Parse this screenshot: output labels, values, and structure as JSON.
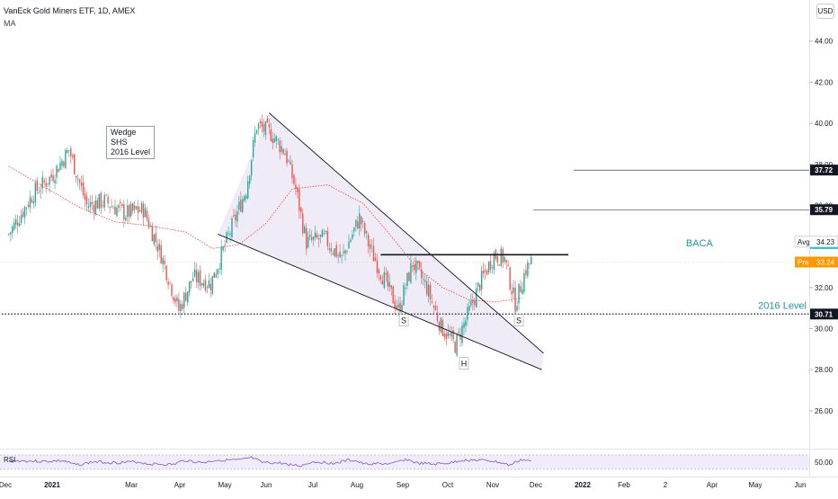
{
  "header": {
    "title": "VanEck Gold Miners ETF, 1D, AMEX",
    "indicator": "MA"
  },
  "currency_button": "USD",
  "note": {
    "lines": [
      "Wedge",
      "SHS",
      "2016 Level"
    ]
  },
  "colors": {
    "up": "#26a69a",
    "down": "#ef5350",
    "ma": "#ef5350",
    "wedge_fill": "#ede9f6",
    "rsi": "#7e57c2",
    "rsi_band": "#f1ecfb",
    "accent": "#2196a3",
    "pre_market": "#ff9800"
  },
  "chart_data": {
    "type": "candlestick",
    "y_ticks": [
      "44.00",
      "42.00",
      "40.00",
      "38.00",
      "36.00",
      "34.00",
      "32.00",
      "30.00",
      "28.00",
      "26.00"
    ],
    "ylim": [
      24.2,
      46.0
    ],
    "x_ticks": [
      "Dec",
      "2021",
      "Mar",
      "Apr",
      "May",
      "Jun",
      "Jul",
      "Aug",
      "Sep",
      "Oct",
      "Nov",
      "Dec",
      "2022",
      "Feb",
      "2",
      "Apr",
      "May",
      "Jun"
    ],
    "anchors": [
      {
        "t": 0,
        "p": 34.6
      },
      {
        "t": 14,
        "p": 36.6
      },
      {
        "t": 24,
        "p": 37.4
      },
      {
        "t": 34,
        "p": 38.7
      },
      {
        "t": 44,
        "p": 36.0
      },
      {
        "t": 54,
        "p": 36.2
      },
      {
        "t": 66,
        "p": 35.6
      },
      {
        "t": 76,
        "p": 35.8
      },
      {
        "t": 86,
        "p": 33.6
      },
      {
        "t": 96,
        "p": 30.9
      },
      {
        "t": 104,
        "p": 32.5
      },
      {
        "t": 114,
        "p": 32.2
      },
      {
        "t": 124,
        "p": 34.5
      },
      {
        "t": 134,
        "p": 36.8
      },
      {
        "t": 140,
        "p": 39.9
      },
      {
        "t": 148,
        "p": 39.5
      },
      {
        "t": 156,
        "p": 38.6
      },
      {
        "t": 162,
        "p": 36.8
      },
      {
        "t": 168,
        "p": 34.2
      },
      {
        "t": 178,
        "p": 34.4
      },
      {
        "t": 188,
        "p": 33.4
      },
      {
        "t": 198,
        "p": 35.4
      },
      {
        "t": 204,
        "p": 33.9
      },
      {
        "t": 212,
        "p": 32.4
      },
      {
        "t": 220,
        "p": 30.9
      },
      {
        "t": 228,
        "p": 33.2
      },
      {
        "t": 236,
        "p": 32.0
      },
      {
        "t": 244,
        "p": 30.1
      },
      {
        "t": 252,
        "p": 29.2
      },
      {
        "t": 258,
        "p": 30.4
      },
      {
        "t": 266,
        "p": 32.2
      },
      {
        "t": 274,
        "p": 33.6
      },
      {
        "t": 280,
        "p": 33.4
      },
      {
        "t": 286,
        "p": 31.2
      },
      {
        "t": 292,
        "p": 32.9
      },
      {
        "t": 295,
        "p": 33.3
      }
    ],
    "moving_average": [
      {
        "t": 0,
        "p": 37.9
      },
      {
        "t": 20,
        "p": 36.9
      },
      {
        "t": 40,
        "p": 35.9
      },
      {
        "t": 60,
        "p": 35.2
      },
      {
        "t": 80,
        "p": 35.0
      },
      {
        "t": 100,
        "p": 34.7
      },
      {
        "t": 115,
        "p": 33.9
      },
      {
        "t": 130,
        "p": 34.1
      },
      {
        "t": 145,
        "p": 35.1
      },
      {
        "t": 160,
        "p": 36.8
      },
      {
        "t": 180,
        "p": 37.0
      },
      {
        "t": 200,
        "p": 36.1
      },
      {
        "t": 215,
        "p": 34.6
      },
      {
        "t": 230,
        "p": 33.0
      },
      {
        "t": 245,
        "p": 32.0
      },
      {
        "t": 260,
        "p": 31.4
      },
      {
        "t": 275,
        "p": 31.3
      },
      {
        "t": 290,
        "p": 31.5
      }
    ],
    "wedge": {
      "upper": {
        "from": {
          "t": 147,
          "p": 40.5
        },
        "to": {
          "t": 302,
          "p": 28.8
        }
      },
      "lower": {
        "from": {
          "t": 118,
          "p": 34.6
        },
        "to": {
          "t": 301,
          "p": 28.0
        }
      }
    },
    "neckline": {
      "from": {
        "t": 210,
        "p": 33.6
      },
      "to": {
        "t": 316,
        "p": 33.6
      }
    },
    "levels": [
      {
        "price": 37.72,
        "label": "37.72",
        "from_t": 319,
        "style": "solid"
      },
      {
        "price": 35.79,
        "label": "35.79",
        "from_t": 296,
        "style": "solid"
      },
      {
        "price": 30.71,
        "label": "30.71",
        "from_t": -4,
        "style": "dotted",
        "name": "2016 Level"
      }
    ],
    "text_labels": [
      {
        "text": "BACA",
        "t": 390,
        "p": 34.0
      },
      {
        "text": "S",
        "t": 223,
        "p": 30.3
      },
      {
        "text": "H",
        "t": 257,
        "p": 28.2
      },
      {
        "text": "S",
        "t": 288,
        "p": 30.3
      }
    ],
    "price_tags": [
      {
        "name": "Avg",
        "value": "34.23",
        "price": 34.23
      },
      {
        "name": "Pre",
        "value": "33.24",
        "price": 33.24
      }
    ],
    "rsi": {
      "label": "RSI",
      "tick": "50.00",
      "upper": 70,
      "lower": 30
    }
  }
}
